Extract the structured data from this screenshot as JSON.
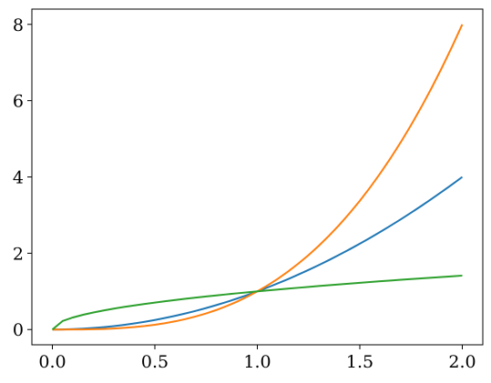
{
  "chart_data": {
    "type": "line",
    "x": [
      0,
      0.05,
      0.1,
      0.15,
      0.2,
      0.25,
      0.3,
      0.35,
      0.4,
      0.45,
      0.5,
      0.55,
      0.6,
      0.65,
      0.7,
      0.75,
      0.8,
      0.85,
      0.9,
      0.95,
      1,
      1.05,
      1.1,
      1.15,
      1.2,
      1.25,
      1.3,
      1.35,
      1.4,
      1.45,
      1.5,
      1.55,
      1.6,
      1.65,
      1.7,
      1.75,
      1.8,
      1.85,
      1.9,
      1.95,
      2
    ],
    "series": [
      {
        "color": "#1f77b4",
        "values": [
          0,
          0.0025,
          0.01,
          0.0225,
          0.04,
          0.0625,
          0.09,
          0.1225,
          0.16,
          0.2025,
          0.25,
          0.3025,
          0.36,
          0.4225,
          0.49,
          0.5625,
          0.64,
          0.7225,
          0.81,
          0.9025,
          1,
          1.1025,
          1.21,
          1.3225,
          1.44,
          1.5625,
          1.69,
          1.8225,
          1.96,
          2.1025,
          2.25,
          2.4025,
          2.56,
          2.7225,
          2.89,
          3.0625,
          3.24,
          3.4225,
          3.61,
          3.8025,
          4
        ]
      },
      {
        "color": "#ff7f0e",
        "values": [
          0,
          0.000125,
          0.001,
          0.003375,
          0.008,
          0.015625,
          0.027,
          0.042875,
          0.064,
          0.091125,
          0.125,
          0.166375,
          0.216,
          0.274625,
          0.343,
          0.421875,
          0.512,
          0.614125,
          0.729,
          0.857375,
          1,
          1.157625,
          1.331,
          1.520875,
          1.728,
          1.953125,
          2.197,
          2.460375,
          2.744,
          3.048625,
          3.375,
          3.723875,
          4.096,
          4.492125,
          4.913,
          5.359375,
          5.832,
          6.331625,
          6.859,
          7.414875,
          8
        ]
      },
      {
        "color": "#2ca02c",
        "values": [
          0,
          0.224,
          0.316,
          0.387,
          0.447,
          0.5,
          0.548,
          0.592,
          0.632,
          0.671,
          0.707,
          0.742,
          0.775,
          0.806,
          0.837,
          0.866,
          0.894,
          0.922,
          0.949,
          0.975,
          1,
          1.025,
          1.049,
          1.072,
          1.095,
          1.118,
          1.14,
          1.162,
          1.183,
          1.204,
          1.225,
          1.245,
          1.265,
          1.285,
          1.304,
          1.323,
          1.342,
          1.36,
          1.378,
          1.396,
          1.414
        ]
      }
    ],
    "xlim": [
      -0.1,
      2.1
    ],
    "ylim": [
      -0.4,
      8.4
    ],
    "xticks": [
      {
        "value": 0,
        "label": "0.0"
      },
      0.5,
      {
        "value": 1,
        "label": "1.0"
      },
      1.5,
      {
        "value": 2,
        "label": "2.0"
      }
    ],
    "yticks": [
      0,
      2,
      4,
      6,
      8
    ],
    "grid": false
  }
}
